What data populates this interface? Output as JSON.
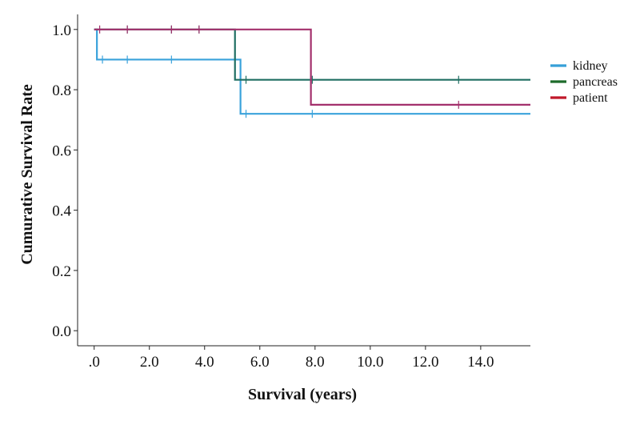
{
  "chart_data": {
    "type": "line",
    "subtype": "kaplan-meier-step",
    "xlabel": "Survival (years)",
    "ylabel": "Cumurative Survival Rate",
    "xlim": [
      -0.6,
      15.8
    ],
    "ylim": [
      -0.05,
      1.05
    ],
    "x_ticks": [
      0,
      2,
      4,
      6,
      8,
      10,
      12,
      14
    ],
    "x_tick_labels": [
      ".0",
      "2.0",
      "4.0",
      "6.0",
      "8.0",
      "10.0",
      "12.0",
      "14.0"
    ],
    "y_ticks": [
      0,
      0.2,
      0.4,
      0.6,
      0.8,
      1.0
    ],
    "y_tick_labels": [
      "0.0",
      "0.2",
      "0.4",
      "0.6",
      "0.8",
      "1.0"
    ],
    "grid": false,
    "legend_position": "right",
    "series": [
      {
        "name": "kidney",
        "color": "#3aa2db",
        "steps": [
          [
            0,
            1.0
          ],
          [
            0.1,
            0.9
          ],
          [
            5.3,
            0.72
          ],
          [
            15.8,
            0.72
          ]
        ],
        "censored": [
          0.3,
          1.2,
          2.8,
          5.5,
          7.9
        ]
      },
      {
        "name": "pancreas",
        "color": "#1f6e62",
        "steps": [
          [
            0,
            1.0
          ],
          [
            5.1,
            0.833
          ],
          [
            15.8,
            0.833
          ]
        ],
        "censored": [
          1.2,
          2.8,
          3.8,
          5.5,
          7.9,
          13.2
        ]
      },
      {
        "name": "patient",
        "color": "#a3306c",
        "steps": [
          [
            0,
            1.0
          ],
          [
            7.85,
            0.75
          ],
          [
            15.8,
            0.75
          ]
        ],
        "censored": [
          0.2,
          1.2,
          2.8,
          3.8,
          13.2
        ]
      }
    ],
    "legend": [
      {
        "label": "kidney",
        "swatch": "#36a0d8"
      },
      {
        "label": "pancreas",
        "swatch": "#1d6b2b"
      },
      {
        "label": "patient",
        "swatch": "#c0182a"
      }
    ]
  }
}
